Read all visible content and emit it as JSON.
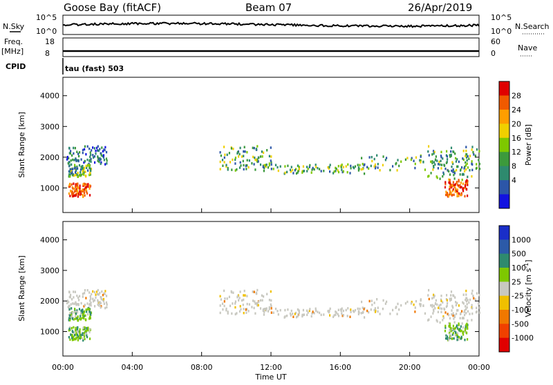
{
  "header": {
    "station": "Goose Bay (fitACF)",
    "beam": "Beam 07",
    "date": "26/Apr/2019"
  },
  "top_panels": {
    "nsky_label": "N.Sky",
    "nsky_ticks": [
      "10^5",
      "10^0"
    ],
    "nsearch_label": "N.Search",
    "nsearch_ticks": [
      "10^5",
      "10^0"
    ],
    "freq_label": "Freq.",
    "freq_unit": "[MHz]",
    "freq_ticks": [
      "18",
      "8"
    ],
    "nave_label": "Nave",
    "nave_ticks": [
      "60",
      "0"
    ],
    "cpid_label": "CPID",
    "cpid_value": "tau (fast) 503"
  },
  "chart_data": [
    {
      "type": "heatmap",
      "panel": "power",
      "ylabel": "Slant Range [km]",
      "xlabel": "",
      "ylim": [
        200,
        4600
      ],
      "yticks": [
        "4000",
        "3000",
        "2000",
        "1000"
      ],
      "colorbar_label": "Power [dB]",
      "colorbar_ticks": [
        "28",
        "24",
        "20",
        "16",
        "12",
        "8",
        "4"
      ],
      "colors": [
        "#e00000",
        "#f05a00",
        "#ff9e00",
        "#f0d000",
        "#7ec800",
        "#3c9a3c",
        "#2e8a6e",
        "#2c56a8",
        "#1212e0"
      ],
      "regions": [
        {
          "t": [
            0.2,
            2.5
          ],
          "r": [
            1800,
            2400
          ],
          "level": "low"
        },
        {
          "t": [
            0.3,
            1.6
          ],
          "r": [
            1400,
            1800
          ],
          "level": "mid"
        },
        {
          "t": [
            0.3,
            1.6
          ],
          "r": [
            750,
            1200
          ],
          "level": "high"
        },
        {
          "t": [
            9.0,
            12.0
          ],
          "r": [
            1600,
            2400
          ],
          "level": "mid"
        },
        {
          "t": [
            11.5,
            17.5
          ],
          "r": [
            1500,
            1800
          ],
          "level": "mid"
        },
        {
          "t": [
            17.0,
            24.0
          ],
          "r": [
            1600,
            2100
          ],
          "level": "mid"
        },
        {
          "t": [
            21.0,
            24.0
          ],
          "r": [
            1300,
            2400
          ],
          "level": "mid"
        },
        {
          "t": [
            22.0,
            23.3
          ],
          "r": [
            750,
            1300
          ],
          "level": "high"
        }
      ]
    },
    {
      "type": "heatmap",
      "panel": "velocity",
      "ylabel": "Slant Range [km]",
      "xlabel": "Time UT",
      "ylim": [
        200,
        4600
      ],
      "yticks": [
        "4000",
        "3000",
        "2000",
        "1000"
      ],
      "xticks": [
        "00:00",
        "04:00",
        "08:00",
        "12:00",
        "16:00",
        "20:00",
        "00:00"
      ],
      "colorbar_label": "Velocity [m s",
      "colorbar_label_exp": "-1",
      "colorbar_label_end": "]",
      "colorbar_ticks": [
        "1000",
        "500",
        "100",
        "25",
        "-25",
        "-100",
        "-500",
        "-1000"
      ],
      "colors": [
        "#1a2ec8",
        "#2c5aa8",
        "#2e8a6e",
        "#7ec800",
        "#c8c8c0",
        "#f0c000",
        "#f07800",
        "#f04000",
        "#e00000"
      ],
      "regions": [
        {
          "t": [
            0.2,
            2.5
          ],
          "r": [
            1800,
            2400
          ],
          "level": "grey"
        },
        {
          "t": [
            0.3,
            1.6
          ],
          "r": [
            1400,
            1800
          ],
          "level": "green"
        },
        {
          "t": [
            0.3,
            1.6
          ],
          "r": [
            750,
            1200
          ],
          "level": "green"
        },
        {
          "t": [
            9.0,
            12.0
          ],
          "r": [
            1600,
            2400
          ],
          "level": "grey"
        },
        {
          "t": [
            11.5,
            17.5
          ],
          "r": [
            1500,
            1800
          ],
          "level": "grey"
        },
        {
          "t": [
            17.0,
            24.0
          ],
          "r": [
            1600,
            2100
          ],
          "level": "grey"
        },
        {
          "t": [
            21.0,
            24.0
          ],
          "r": [
            1300,
            2400
          ],
          "level": "grey"
        },
        {
          "t": [
            22.0,
            23.3
          ],
          "r": [
            750,
            1300
          ],
          "level": "green"
        }
      ]
    }
  ]
}
